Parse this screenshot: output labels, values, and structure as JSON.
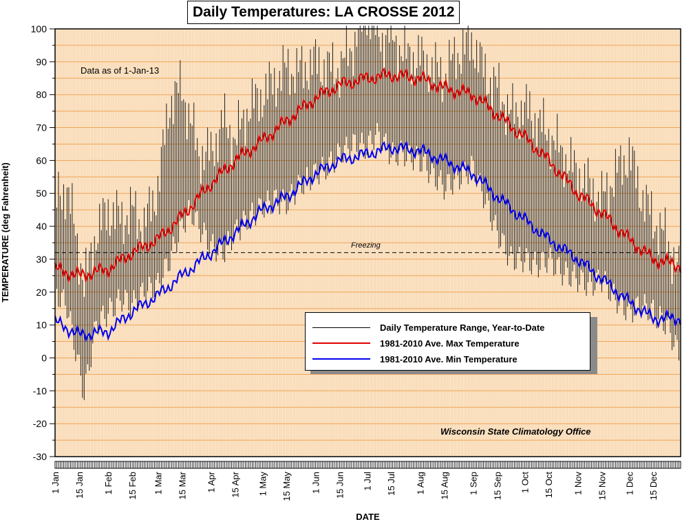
{
  "chart_data": {
    "type": "line",
    "title": "Daily Temperatures: LA CROSSE 2012",
    "xlabel": "DATE",
    "ylabel": "TEMPERATURE (deg Fahrenheit)",
    "ylim": [
      -30,
      100
    ],
    "yticks": [
      -30,
      -20,
      -10,
      0,
      10,
      20,
      30,
      40,
      50,
      60,
      70,
      80,
      90,
      100
    ],
    "xlim_days": [
      1,
      366
    ],
    "x_ticks": [
      {
        "label": "1 Jan",
        "day": 1
      },
      {
        "label": "15 Jan",
        "day": 15
      },
      {
        "label": "1 Feb",
        "day": 32
      },
      {
        "label": "15 Feb",
        "day": 46
      },
      {
        "label": "1 Mar",
        "day": 61
      },
      {
        "label": "15 Mar",
        "day": 75
      },
      {
        "label": "1 Apr",
        "day": 92
      },
      {
        "label": "15 Apr",
        "day": 106
      },
      {
        "label": "1 May",
        "day": 122
      },
      {
        "label": "15 May",
        "day": 136
      },
      {
        "label": "1 Jun",
        "day": 153
      },
      {
        "label": "15 Jun",
        "day": 167
      },
      {
        "label": "1 Jul",
        "day": 183
      },
      {
        "label": "15 Jul",
        "day": 197
      },
      {
        "label": "1 Aug",
        "day": 214
      },
      {
        "label": "15 Aug",
        "day": 228
      },
      {
        "label": "1 Sep",
        "day": 245
      },
      {
        "label": "15 Sep",
        "day": 259
      },
      {
        "label": "1 Oct",
        "day": 275
      },
      {
        "label": "15 Oct",
        "day": 289
      },
      {
        "label": "1 Nov",
        "day": 306
      },
      {
        "label": "15 Nov",
        "day": 320
      },
      {
        "label": "1 Dec",
        "day": 336
      },
      {
        "label": "15 Dec",
        "day": 350
      }
    ],
    "annotations": {
      "as_of": "Data as of 1-Jan-13",
      "freezing_label": "Freezing",
      "freezing_value": 32,
      "credit": "Wisconsin State Climatology Office"
    },
    "legend": [
      {
        "name": "Daily Temperature Range, Year-to-Date",
        "color": "#000000"
      },
      {
        "name": "1981-2010 Ave. Max Temperature",
        "color": "#e00000"
      },
      {
        "name": "1981-2010 Ave. Min Temperature",
        "color": "#0000ee"
      }
    ],
    "series": [
      {
        "name": "1981-2010 Ave. Max Temperature",
        "color": "#e00000",
        "x": [
          1,
          15,
          32,
          46,
          61,
          75,
          92,
          106,
          122,
          136,
          153,
          167,
          183,
          197,
          214,
          228,
          245,
          259,
          275,
          289,
          306,
          320,
          336,
          350,
          366
        ],
        "values": [
          27,
          25,
          27,
          32,
          36,
          43,
          53,
          60,
          66,
          72,
          79,
          83,
          85,
          86,
          85,
          82,
          80,
          74,
          67,
          60,
          50,
          44,
          36,
          30,
          28
        ]
      },
      {
        "name": "1981-2010 Ave. Min Temperature",
        "color": "#0000ee",
        "x": [
          1,
          15,
          32,
          46,
          61,
          75,
          92,
          106,
          122,
          136,
          153,
          167,
          183,
          197,
          214,
          228,
          245,
          259,
          275,
          289,
          306,
          320,
          336,
          350,
          366
        ],
        "values": [
          11,
          7,
          8,
          14,
          19,
          25,
          32,
          38,
          45,
          49,
          56,
          60,
          62,
          64,
          63,
          60,
          56,
          49,
          42,
          36,
          30,
          24,
          17,
          12,
          12
        ]
      },
      {
        "name": "Daily Temperature Range, Year-to-Date",
        "color": "#000000",
        "type": "range",
        "x": [
          1,
          8,
          15,
          18,
          25,
          32,
          40,
          46,
          53,
          61,
          68,
          75,
          80,
          85,
          92,
          99,
          106,
          113,
          122,
          129,
          136,
          143,
          153,
          160,
          167,
          176,
          183,
          188,
          192,
          197,
          205,
          214,
          221,
          228,
          235,
          245,
          252,
          259,
          267,
          275,
          282,
          289,
          297,
          306,
          313,
          320,
          328,
          336,
          343,
          350,
          358,
          366
        ],
        "low": [
          20,
          16,
          -3,
          -11,
          10,
          14,
          18,
          16,
          20,
          22,
          30,
          40,
          45,
          40,
          34,
          32,
          38,
          42,
          46,
          48,
          47,
          52,
          56,
          58,
          62,
          65,
          64,
          68,
          66,
          62,
          62,
          60,
          56,
          52,
          54,
          58,
          48,
          38,
          30,
          30,
          28,
          30,
          26,
          24,
          22,
          24,
          18,
          14,
          16,
          14,
          10,
          0
        ],
        "high": [
          47,
          52,
          32,
          22,
          38,
          45,
          42,
          45,
          40,
          52,
          78,
          82,
          72,
          62,
          62,
          72,
          66,
          75,
          80,
          84,
          88,
          87,
          90,
          88,
          88,
          96,
          106,
          100,
          97,
          98,
          92,
          91,
          88,
          86,
          92,
          96,
          86,
          82,
          74,
          76,
          72,
          68,
          62,
          56,
          52,
          48,
          56,
          62,
          50,
          42,
          36,
          24
        ]
      }
    ]
  }
}
